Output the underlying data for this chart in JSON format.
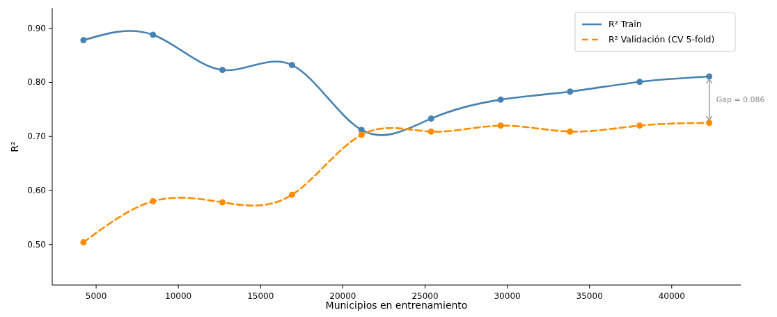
{
  "chart_data": {
    "type": "line",
    "xlabel": "Municipios en entrenamiento",
    "ylabel": "R²",
    "x": [
      4230,
      8460,
      12680,
      16910,
      21140,
      25370,
      29600,
      33820,
      38050,
      42280
    ],
    "series": [
      {
        "name": "R² Train",
        "color": "#4682b4",
        "line_style": "solid",
        "values": [
          0.878,
          0.888,
          0.823,
          0.832,
          0.712,
          0.733,
          0.768,
          0.783,
          0.801,
          0.811
        ]
      },
      {
        "name": "R² Validación (CV 5-fold)",
        "color": "#ff8c00",
        "line_style": "dashed",
        "values": [
          0.504,
          0.58,
          0.578,
          0.592,
          0.703,
          0.709,
          0.72,
          0.709,
          0.72,
          0.725
        ]
      }
    ],
    "xlim": [
      2330,
      44200
    ],
    "xticks": [
      5000,
      10000,
      15000,
      20000,
      25000,
      30000,
      35000,
      40000
    ],
    "ylim": [
      0.425,
      0.937
    ],
    "yticks": [
      {
        "value": 0.5,
        "label": "0.50"
      },
      {
        "value": 0.6,
        "label": "0.60"
      },
      {
        "value": 0.7,
        "label": "0.70"
      },
      {
        "value": 0.8,
        "label": "0.80"
      },
      {
        "value": 0.9,
        "label": "0.90"
      }
    ],
    "annotations": [
      "Gap = 0.086"
    ],
    "marker": "circle",
    "legend": "top right",
    "grid": false
  }
}
